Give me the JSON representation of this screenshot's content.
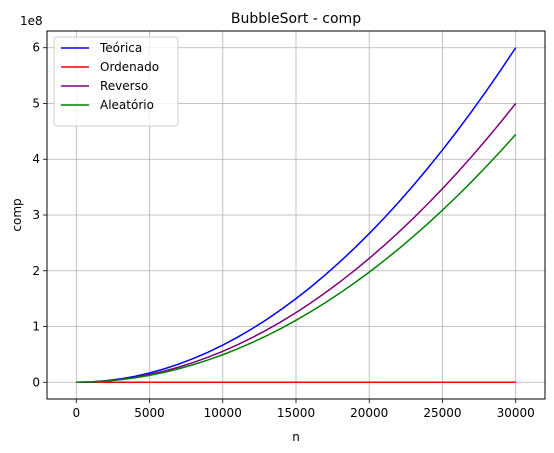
{
  "chart_data": {
    "type": "line",
    "title": "BubbleSort - comp",
    "xlabel": "n",
    "ylabel": "comp",
    "y_offset_label": "1e8",
    "xlim": [
      -2000,
      32000
    ],
    "ylim": [
      -0.3,
      6.3
    ],
    "x_ticks": [
      0,
      5000,
      10000,
      15000,
      20000,
      25000,
      30000
    ],
    "y_ticks": [
      0,
      1,
      2,
      3,
      4,
      5,
      6
    ],
    "grid": true,
    "legend_position": "top-left",
    "x": [
      0,
      1000,
      2000,
      3000,
      4000,
      5000,
      6000,
      7000,
      8000,
      9000,
      10000,
      11000,
      12000,
      13000,
      14000,
      15000,
      16000,
      17000,
      18000,
      19000,
      20000,
      21000,
      22000,
      23000,
      24000,
      25000,
      26000,
      27000,
      28000,
      29000,
      30000
    ],
    "series": [
      {
        "name": "Teórica",
        "color": "#0000ff",
        "values": [
          0,
          0.0067,
          0.0267,
          0.06,
          0.1067,
          0.1667,
          0.24,
          0.3267,
          0.4267,
          0.54,
          0.6667,
          0.8067,
          0.96,
          1.1267,
          1.3067,
          1.5,
          1.7067,
          1.9267,
          2.16,
          2.4067,
          2.6667,
          2.94,
          3.2267,
          3.5267,
          3.84,
          4.1667,
          4.5067,
          4.86,
          5.2267,
          5.6067,
          6.0
        ]
      },
      {
        "name": "Ordenado",
        "color": "#ff0000",
        "values": [
          0,
          0,
          0,
          0,
          0,
          0,
          0,
          0,
          0,
          0,
          0,
          0,
          0,
          0,
          0,
          0,
          0,
          0,
          0,
          0,
          0,
          0,
          0,
          0,
          0,
          0,
          0,
          0,
          0,
          0,
          0
        ]
      },
      {
        "name": "Reverso",
        "color": "#800080",
        "values": [
          0,
          0.0056,
          0.0222,
          0.05,
          0.0889,
          0.1389,
          0.2,
          0.2722,
          0.3556,
          0.45,
          0.5556,
          0.6722,
          0.8,
          0.9389,
          1.0889,
          1.25,
          1.4222,
          1.6056,
          1.8,
          2.0056,
          2.2222,
          2.45,
          2.6889,
          2.9389,
          3.2,
          3.4722,
          3.7556,
          4.05,
          4.3556,
          4.6722,
          5.0
        ]
      },
      {
        "name": "Aleatório",
        "color": "#008000",
        "values": [
          0,
          0.0049,
          0.0198,
          0.0444,
          0.079,
          0.1235,
          0.1778,
          0.242,
          0.316,
          0.4,
          0.4938,
          0.5975,
          0.7111,
          0.8346,
          0.9679,
          1.1111,
          1.2642,
          1.4272,
          1.6,
          1.7827,
          1.9753,
          2.1778,
          2.3901,
          2.6124,
          2.8444,
          3.0864,
          3.3383,
          3.6,
          3.8716,
          4.1531,
          4.4444
        ]
      }
    ]
  }
}
